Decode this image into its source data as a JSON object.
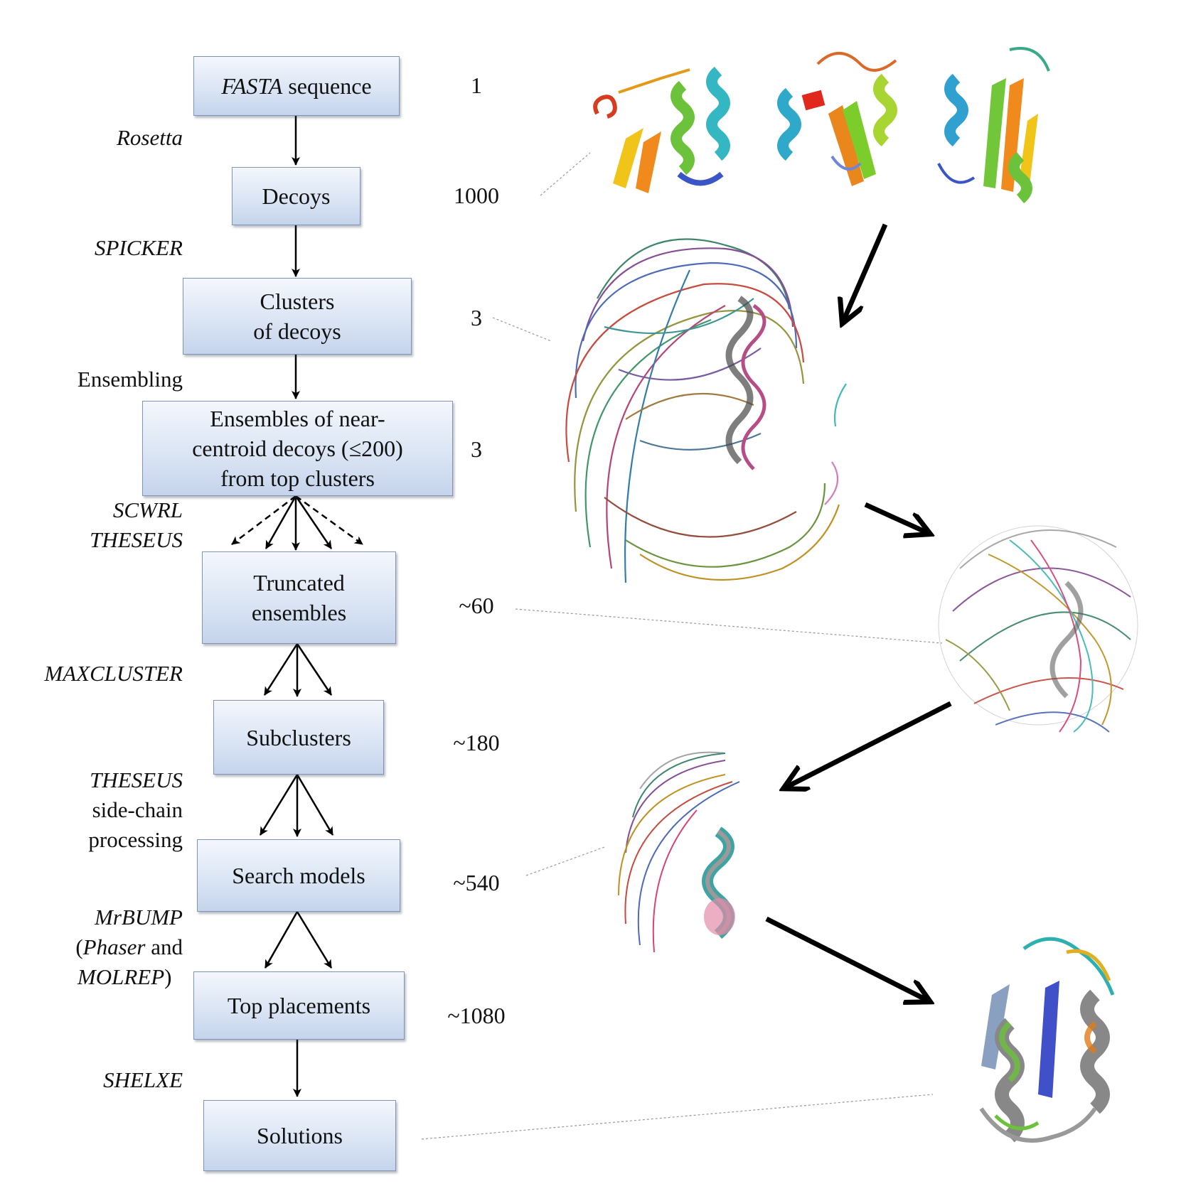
{
  "diagram": {
    "steps": [
      {
        "id": "fasta",
        "italic_prefix": "FASTA",
        "text": " sequence",
        "count": "1"
      },
      {
        "id": "decoys",
        "lines": [
          "Decoys"
        ],
        "count": "1000"
      },
      {
        "id": "clusters",
        "lines": [
          "Clusters",
          "of decoys"
        ],
        "count": "3"
      },
      {
        "id": "ensembles",
        "lines": [
          "Ensembles of near-",
          "centroid decoys (≤200)",
          "from top clusters"
        ],
        "count": "3"
      },
      {
        "id": "truncated",
        "lines": [
          "Truncated",
          "ensembles"
        ],
        "count": "~60"
      },
      {
        "id": "subclusters",
        "lines": [
          "Subclusters"
        ],
        "count": "~180"
      },
      {
        "id": "search",
        "lines": [
          "Search models"
        ],
        "count": "~540"
      },
      {
        "id": "top",
        "lines": [
          "Top placements"
        ],
        "count": "~1080"
      },
      {
        "id": "solutions",
        "lines": [
          "Solutions"
        ],
        "count": ""
      }
    ],
    "tools": {
      "rosetta": "Rosetta",
      "spicker": "SPICKER",
      "ensembling": "Ensembling",
      "scwrl": "SCWRL",
      "theseus1": "THESEUS",
      "maxcluster": "MAXCLUSTER",
      "theseus2": "THESEUS",
      "sidechain1": "side-chain",
      "sidechain2": "processing",
      "mrbump": "MrBUMP",
      "paren_open": "(",
      "phaser": "Phaser",
      "and": " and",
      "molrep": "MOLREP",
      "paren_close": ")",
      "shelxe": "SHELXE"
    }
  },
  "images": [
    {
      "name": "decoy-structures",
      "description_icon": "rainbow-cartoon-protein-icon"
    },
    {
      "name": "cluster-ensemble",
      "description_icon": "superposed-ensemble-icon"
    },
    {
      "name": "truncated-ensemble",
      "description_icon": "truncated-ensemble-icon"
    },
    {
      "name": "search-model",
      "description_icon": "search-model-icon"
    },
    {
      "name": "solution-structure",
      "description_icon": "solution-cartoon-icon"
    }
  ],
  "colors": {
    "box_border": "#7f95b5",
    "box_fill_top": "#f4f7fc",
    "box_fill_bottom": "#c5d4ec",
    "arrow": "#000000",
    "guide_line": "#999999"
  }
}
